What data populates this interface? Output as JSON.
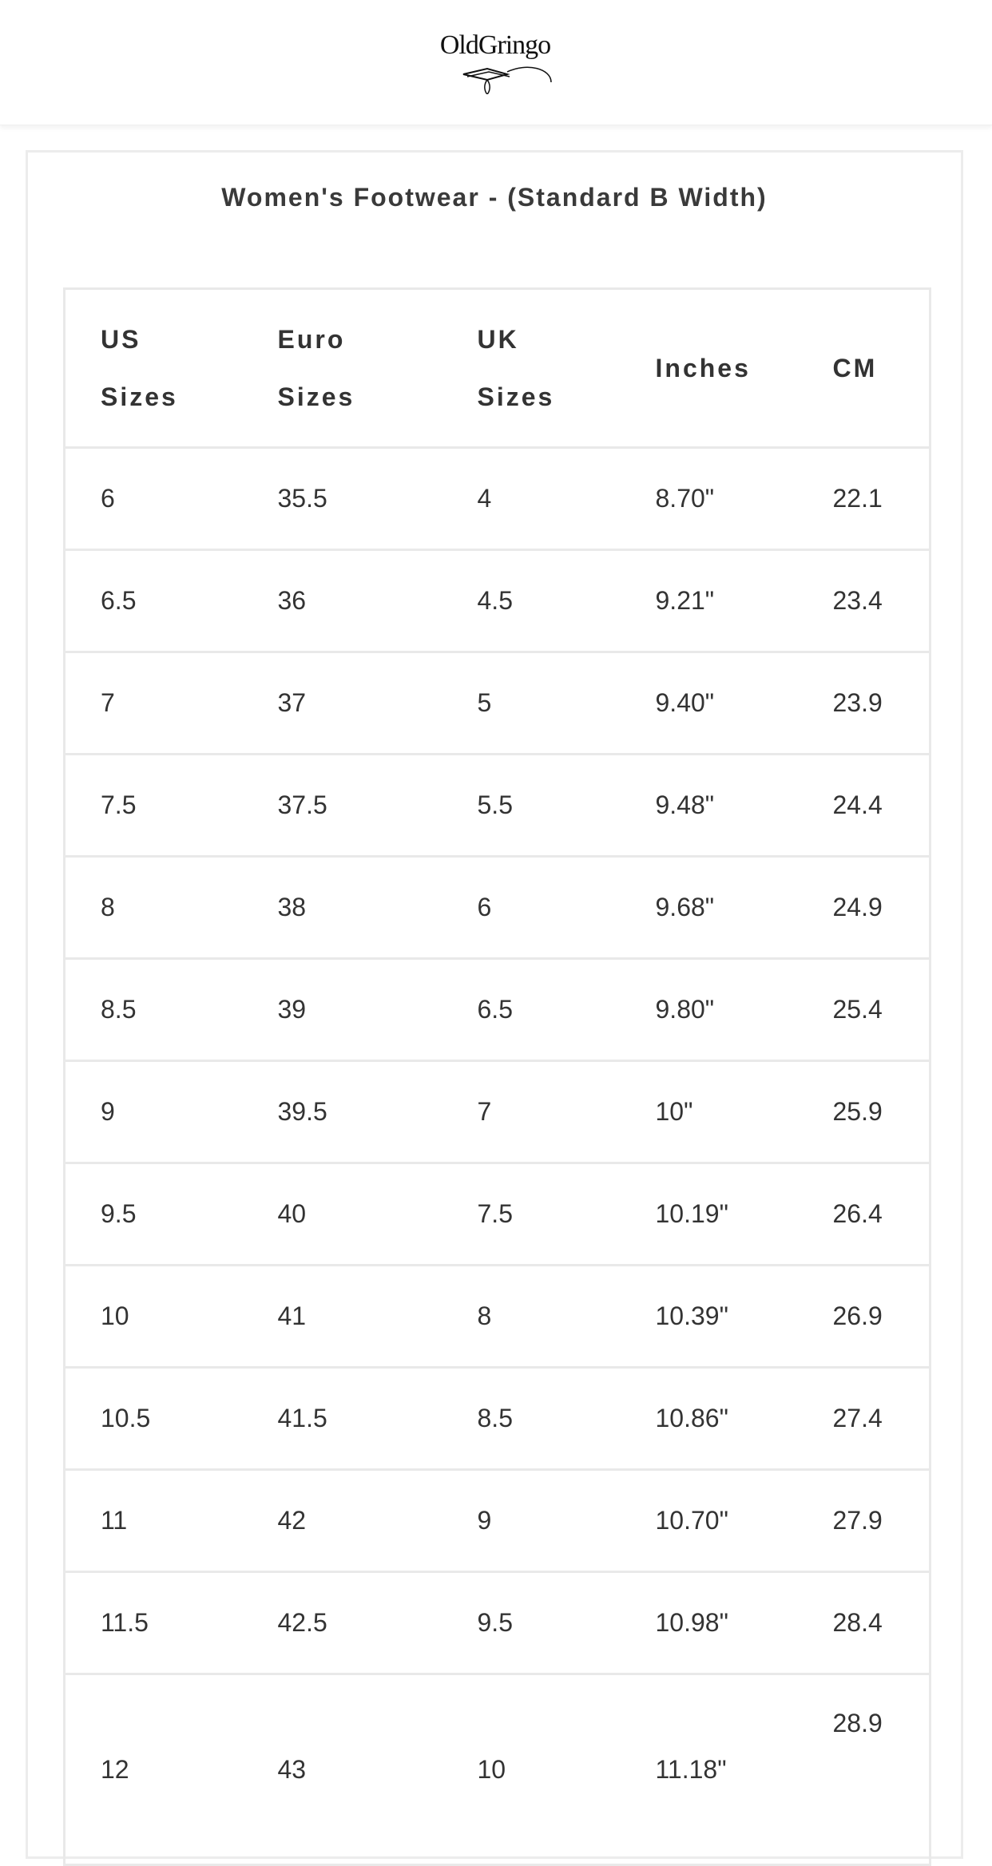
{
  "brand": {
    "logo_text": "OldGringo"
  },
  "chart": {
    "title": "Women's Footwear - (Standard B Width)",
    "headers": [
      "US Sizes",
      "Euro Sizes",
      "UK Sizes",
      "Inches",
      "CM"
    ],
    "rows": [
      [
        "6",
        "35.5",
        "4",
        "8.70\"",
        "22.1"
      ],
      [
        "6.5",
        "36",
        "4.5",
        "9.21\"",
        "23.4"
      ],
      [
        "7",
        "37",
        "5",
        "9.40\"",
        "23.9"
      ],
      [
        "7.5",
        "37.5",
        "5.5",
        "9.48\"",
        "24.4"
      ],
      [
        "8",
        "38",
        "6",
        "9.68\"",
        "24.9"
      ],
      [
        "8.5",
        "39",
        "6.5",
        "9.80\"",
        "25.4"
      ],
      [
        "9",
        "39.5",
        "7",
        "10\"",
        "25.9"
      ],
      [
        "9.5",
        "40",
        "7.5",
        "10.19\"",
        "26.4"
      ],
      [
        "10",
        "41",
        "8",
        "10.39\"",
        "26.9"
      ],
      [
        "10.5",
        "41.5",
        "8.5",
        "10.86\"",
        "27.4"
      ],
      [
        "11",
        "42",
        "9",
        "10.70\"",
        "27.9"
      ],
      [
        "11.5",
        "42.5",
        "9.5",
        "10.98\"",
        "28.4"
      ],
      [
        "12",
        "43",
        "10",
        "11.18\"",
        "28.9"
      ]
    ]
  }
}
